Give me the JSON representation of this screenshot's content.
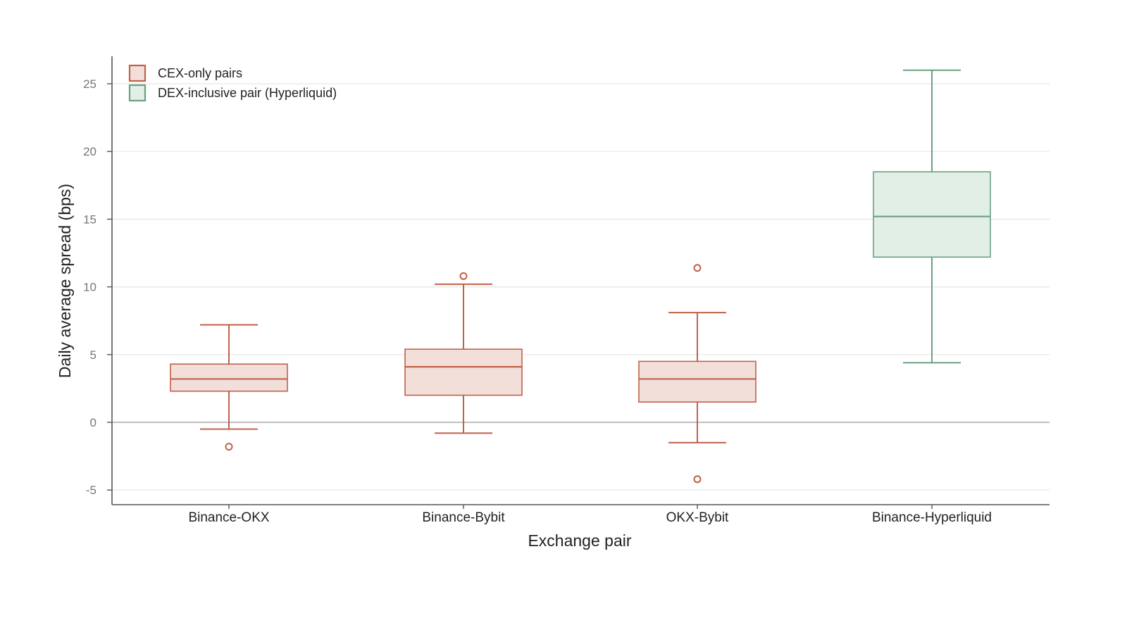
{
  "chart_data": {
    "type": "box",
    "xlabel": "Exchange pair",
    "ylabel": "Daily average spread (bps)",
    "ylim": [
      -6,
      27
    ],
    "yticks": [
      -5,
      0,
      5,
      10,
      15,
      20,
      25
    ],
    "ytick_labels": [
      "-5",
      "0",
      "5",
      "10",
      "15",
      "20",
      "25"
    ],
    "grid": true,
    "legend_position": "top-left",
    "legend": [
      {
        "label": "CEX-only pairs",
        "group": "cex"
      },
      {
        "label": "DEX-inclusive pair (Hyperliquid)",
        "group": "dex"
      }
    ],
    "colors": {
      "cex": {
        "stroke": "#c0614a",
        "fill": "#f3dfda"
      },
      "dex": {
        "stroke": "#6aa080",
        "fill": "#e1efe6"
      },
      "grid": "#e6e6e6",
      "zero_line": "#a8a8a8",
      "axis": "#555555"
    },
    "categories": [
      "Binance-OKX",
      "Binance-Bybit",
      "OKX-Bybit",
      "Binance-Hyperliquid"
    ],
    "boxes": [
      {
        "category": "Binance-OKX",
        "group": "cex",
        "whisker_low": -0.5,
        "q1": 2.3,
        "median": 3.2,
        "q3": 4.3,
        "whisker_high": 7.2,
        "outliers": [
          -1.8
        ]
      },
      {
        "category": "Binance-Bybit",
        "group": "cex",
        "whisker_low": -0.8,
        "q1": 2.0,
        "median": 4.1,
        "q3": 5.4,
        "whisker_high": 10.2,
        "outliers": [
          10.8
        ]
      },
      {
        "category": "OKX-Bybit",
        "group": "cex",
        "whisker_low": -1.5,
        "q1": 1.5,
        "median": 3.2,
        "q3": 4.5,
        "whisker_high": 8.1,
        "outliers": [
          11.4,
          -4.2
        ]
      },
      {
        "category": "Binance-Hyperliquid",
        "group": "dex",
        "whisker_low": 4.4,
        "q1": 12.2,
        "median": 15.2,
        "q3": 18.5,
        "whisker_high": 26.0,
        "outliers": []
      }
    ]
  }
}
